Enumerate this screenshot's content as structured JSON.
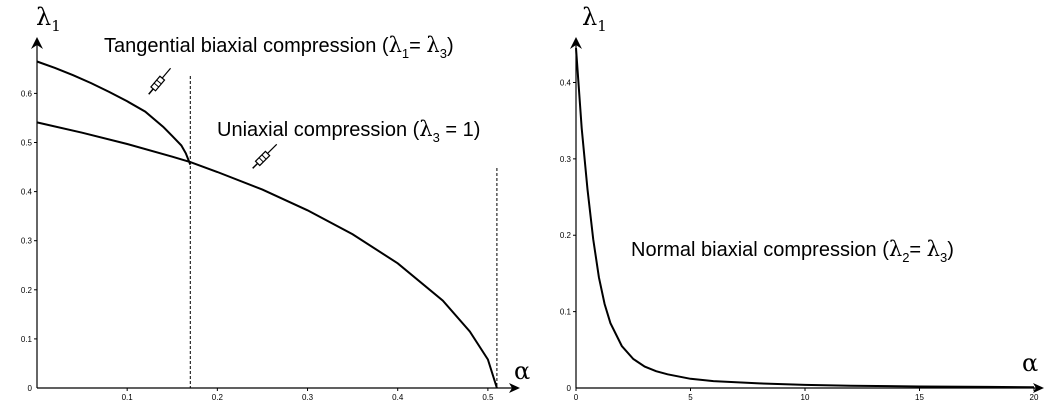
{
  "chart_data": [
    {
      "type": "line",
      "xlabel": "α",
      "ylabel": {
        "symbol": "λ",
        "sub": "1"
      },
      "xlim": [
        0,
        0.51
      ],
      "ylim": [
        0,
        0.7
      ],
      "xticks": [
        "0.1",
        "0.2",
        "0.3",
        "0.4",
        "0.5"
      ],
      "yticks": [
        "0",
        "0.1",
        "0.2",
        "0.3",
        "0.4",
        "0.5",
        "0.6"
      ],
      "grid": false,
      "vlines": [
        0.17,
        0.51
      ],
      "series": [
        {
          "x": [
            0,
            0.02,
            0.04,
            0.06,
            0.08,
            0.1,
            0.12,
            0.14,
            0.15,
            0.16,
            0.165,
            0.17
          ],
          "y": [
            0.665,
            0.652,
            0.637,
            0.621,
            0.603,
            0.584,
            0.563,
            0.532,
            0.513,
            0.494,
            0.478,
            0.455
          ]
        },
        {
          "x": [
            0,
            0.05,
            0.1,
            0.15,
            0.17,
            0.2,
            0.25,
            0.3,
            0.35,
            0.4,
            0.45,
            0.48,
            0.5,
            0.51
          ],
          "y": [
            0.541,
            0.52,
            0.497,
            0.471,
            0.46,
            0.44,
            0.404,
            0.362,
            0.313,
            0.254,
            0.178,
            0.115,
            0.058,
            0.0
          ]
        }
      ],
      "annotations": [
        {
          "text": "Tangential biaxial compression (",
          "symA": "λ",
          "subA": "1",
          "eq": "= ",
          "symB": "λ",
          "subB": "3",
          "tail": ")"
        },
        {
          "text": "Uniaxial compression (",
          "symA": "λ",
          "subA": "3",
          "eq": " = 1)"
        }
      ]
    },
    {
      "type": "line",
      "xlabel": "α",
      "ylabel": {
        "symbol": "λ",
        "sub": "1"
      },
      "xlim": [
        0,
        20
      ],
      "ylim": [
        0,
        0.45
      ],
      "xticks": [
        "0",
        "5",
        "10",
        "15",
        "20"
      ],
      "yticks": [
        "0",
        "0.1",
        "0.2",
        "0.3",
        "0.4"
      ],
      "grid": false,
      "series": [
        {
          "x": [
            0,
            0.25,
            0.5,
            0.75,
            1,
            1.25,
            1.5,
            2,
            2.5,
            3,
            3.5,
            4,
            5,
            6,
            8,
            10,
            12,
            15,
            18,
            20
          ],
          "y": [
            0.445,
            0.34,
            0.26,
            0.195,
            0.145,
            0.11,
            0.085,
            0.055,
            0.038,
            0.028,
            0.022,
            0.018,
            0.012,
            0.009,
            0.006,
            0.004,
            0.003,
            0.002,
            0.0015,
            0.001
          ]
        }
      ],
      "annotations": [
        {
          "text": "Normal biaxial compression (",
          "symA": "λ",
          "subA": "2",
          "eq": "= ",
          "symB": "λ",
          "subB": "3",
          "tail": ")"
        }
      ]
    }
  ]
}
